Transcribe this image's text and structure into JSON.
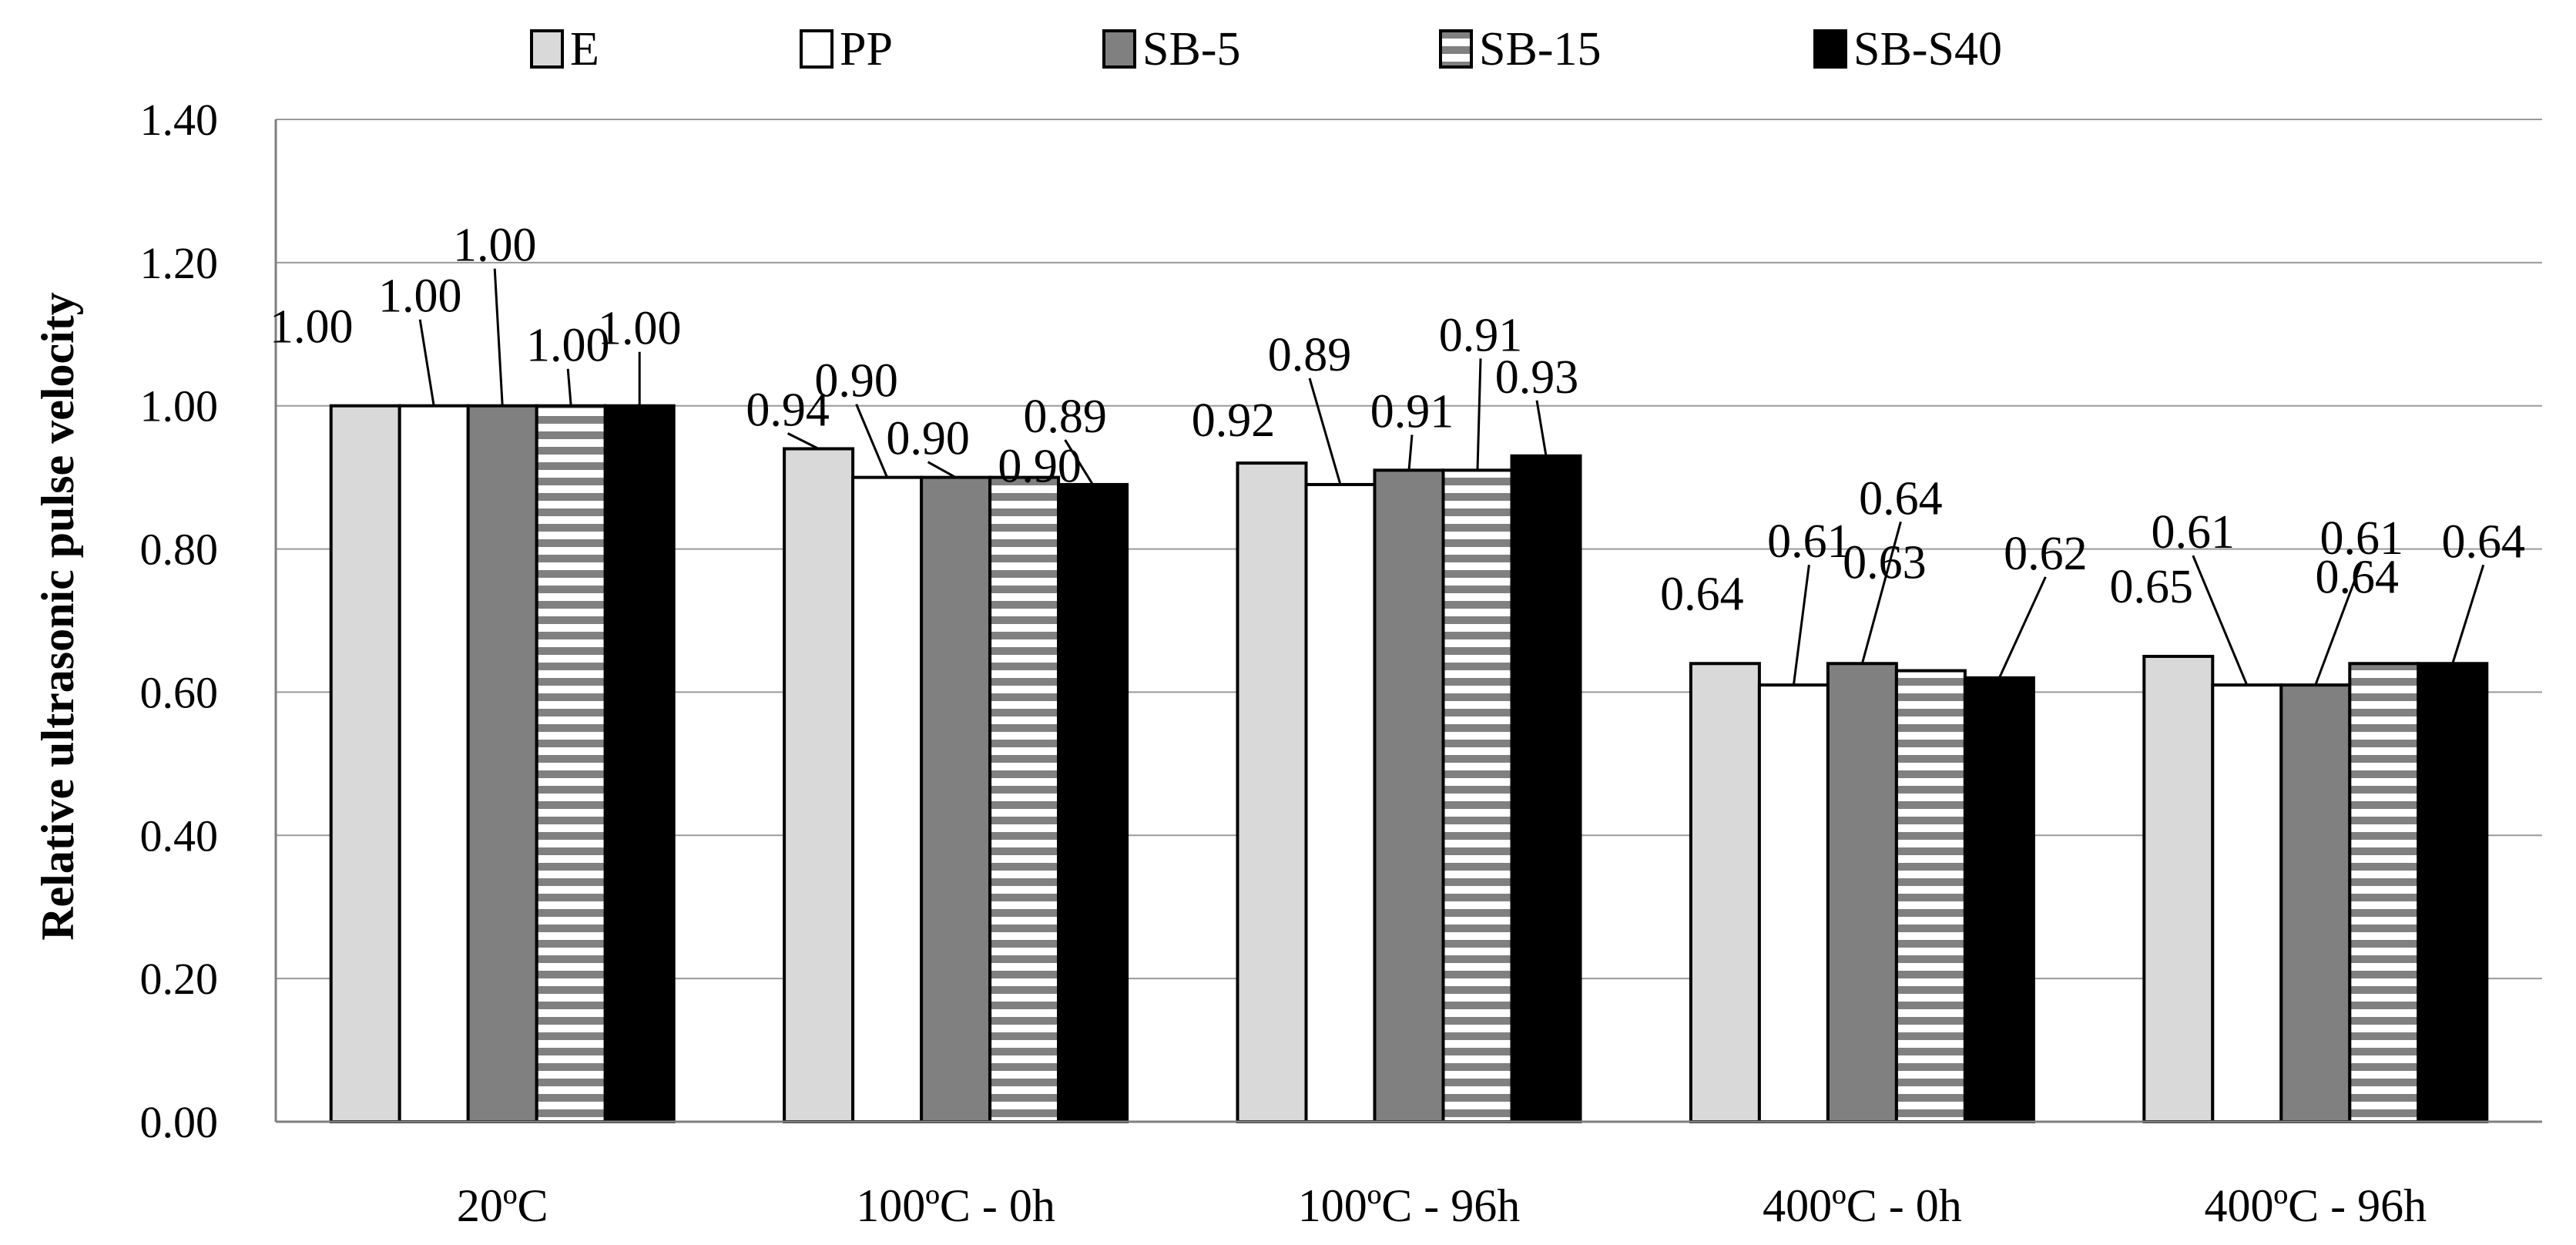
{
  "chart_data": {
    "type": "bar",
    "title": "",
    "xlabel": "",
    "ylabel": "Relative ultrasonic pulse velocity",
    "ylim": [
      0,
      1.4
    ],
    "y_ticks": [
      "0.00",
      "0.20",
      "0.40",
      "0.60",
      "0.80",
      "1.00",
      "1.20",
      "1.40"
    ],
    "grid": true,
    "legend_position": "top",
    "categories": [
      "20ºC",
      "100ºC - 0h",
      "100ºC - 96h",
      "400ºC - 0h",
      "400ºC - 96h"
    ],
    "series": [
      {
        "name": "E",
        "fill": "#d9d9d9",
        "pattern": "solid",
        "values": [
          1.0,
          0.94,
          0.92,
          0.64,
          0.65
        ],
        "labels": [
          "1.00",
          "0.94",
          "0.92",
          "0.64",
          "0.65"
        ]
      },
      {
        "name": "PP",
        "fill": "#ffffff",
        "pattern": "solid",
        "values": [
          1.0,
          0.9,
          0.89,
          0.61,
          0.61
        ],
        "labels": [
          "1.00",
          "0.90",
          "0.89",
          "0.61",
          "0.61"
        ]
      },
      {
        "name": "SB-5",
        "fill": "#808080",
        "pattern": "solid",
        "values": [
          1.0,
          0.9,
          0.91,
          0.64,
          0.61
        ],
        "labels": [
          "1.00",
          "0.90",
          "0.91",
          "0.64",
          "0.61"
        ]
      },
      {
        "name": "SB-15",
        "fill": "#808080",
        "pattern": "stripes",
        "values": [
          1.0,
          0.9,
          0.91,
          0.63,
          0.64
        ],
        "labels": [
          "1.00",
          "0.90",
          "0.91",
          "0.63",
          "0.64"
        ]
      },
      {
        "name": "SB-S40",
        "fill": "#000000",
        "pattern": "solid",
        "values": [
          1.0,
          0.89,
          0.93,
          0.62,
          0.64
        ],
        "labels": [
          "1.00",
          "0.89",
          "0.93",
          "0.62",
          "0.64"
        ]
      }
    ]
  }
}
